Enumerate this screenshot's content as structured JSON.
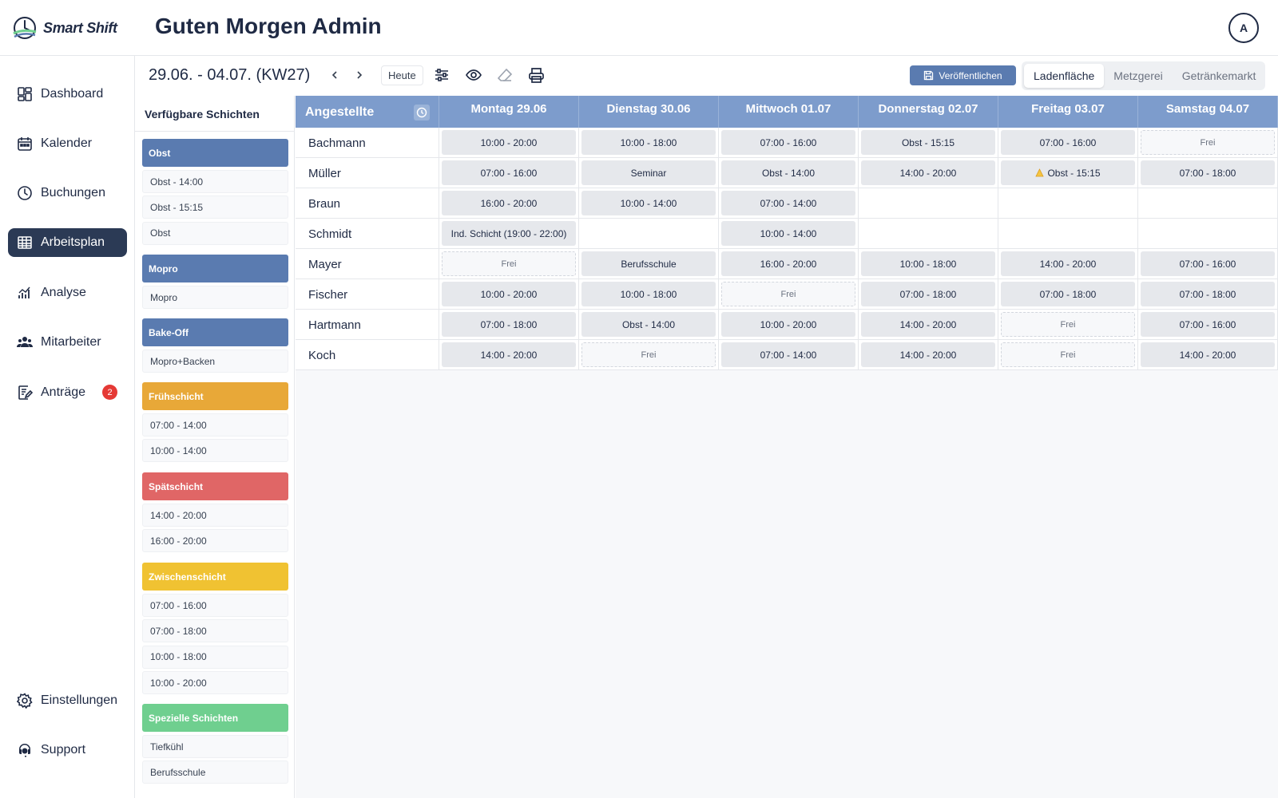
{
  "app": {
    "logo_text": "Smart Shift",
    "greeting": "Guten Morgen Admin",
    "avatar_initial": "A"
  },
  "sidebar": {
    "items": [
      {
        "label": "Dashboard",
        "icon": "dashboard-icon"
      },
      {
        "label": "Kalender",
        "icon": "calendar-icon"
      },
      {
        "label": "Buchungen",
        "icon": "clock-icon"
      },
      {
        "label": "Arbeitsplan",
        "icon": "table-icon",
        "active": true
      },
      {
        "label": "Analyse",
        "icon": "chart-icon"
      },
      {
        "label": "Mitarbeiter",
        "icon": "users-icon"
      },
      {
        "label": "Anträge",
        "icon": "edit-icon",
        "badge": "2"
      }
    ],
    "bottom": [
      {
        "label": "Einstellungen",
        "icon": "gear-icon"
      },
      {
        "label": "Support",
        "icon": "headset-icon"
      }
    ]
  },
  "toolbar": {
    "week_label": "29.06. - 04.07. (KW27)",
    "today_label": "Heute",
    "publish_label": "Veröffentlichen",
    "departments": [
      "Ladenfläche",
      "Metzgerei",
      "Getränkemarkt"
    ],
    "active_department": "Ladenfläche"
  },
  "available": {
    "title": "Verfügbare Schichten",
    "groups": [
      {
        "name": "Obst",
        "color": "#5a7bb0",
        "items": [
          "Obst - 14:00",
          "Obst - 15:15",
          "Obst"
        ]
      },
      {
        "name": "Mopro",
        "color": "#5a7bb0",
        "items": [
          "Mopro"
        ]
      },
      {
        "name": "Bake-Off",
        "color": "#5a7bb0",
        "items": [
          "Mopro+Backen"
        ]
      },
      {
        "name": "Frühschicht",
        "color": "#e8a838",
        "items": [
          "07:00 - 14:00",
          "10:00 - 14:00"
        ]
      },
      {
        "name": "Spätschicht",
        "color": "#e06666",
        "items": [
          "14:00 - 20:00",
          "16:00 - 20:00"
        ]
      },
      {
        "name": "Zwischenschicht",
        "color": "#f0c232",
        "items": [
          "07:00 - 16:00",
          "07:00 - 18:00",
          "10:00 - 18:00",
          "10:00 - 20:00"
        ]
      },
      {
        "name": "Spezielle Schichten",
        "color": "#6fcf8f",
        "items": [
          "Tiefkühl",
          "Berufsschule"
        ]
      }
    ]
  },
  "grid": {
    "employee_header": "Angestellte",
    "days": [
      "Montag 29.06",
      "Dienstag 30.06",
      "Mittwoch 01.07",
      "Donnerstag 02.07",
      "Freitag 03.07",
      "Samstag 04.07"
    ],
    "rows": [
      {
        "name": "Bachmann",
        "cells": [
          "10:00 - 20:00",
          "10:00 - 18:00",
          "07:00 - 16:00",
          "Obst - 15:15",
          "07:00 - 16:00",
          "Frei"
        ]
      },
      {
        "name": "Müller",
        "cells": [
          "07:00 - 16:00",
          "Seminar",
          "Obst - 14:00",
          "14:00 - 20:00",
          "Obst - 15:15",
          "07:00 - 18:00"
        ],
        "warning_cell": 4
      },
      {
        "name": "Braun",
        "cells": [
          "16:00 - 20:00",
          "10:00 - 14:00",
          "07:00 - 14:00",
          "",
          "",
          ""
        ]
      },
      {
        "name": "Schmidt",
        "cells": [
          "Ind. Schicht (19:00 - 22:00)",
          "",
          "10:00 - 14:00",
          "",
          "",
          ""
        ]
      },
      {
        "name": "Mayer",
        "cells": [
          "Frei",
          "Berufsschule",
          "16:00 - 20:00",
          "10:00 - 18:00",
          "14:00 - 20:00",
          "07:00 - 16:00"
        ]
      },
      {
        "name": "Fischer",
        "cells": [
          "10:00 - 20:00",
          "10:00 - 18:00",
          "Frei",
          "07:00 - 18:00",
          "07:00 - 18:00",
          "07:00 - 18:00"
        ]
      },
      {
        "name": "Hartmann",
        "cells": [
          "07:00 - 18:00",
          "Obst - 14:00",
          "10:00 - 20:00",
          "14:00 - 20:00",
          "Frei",
          "07:00 - 16:00"
        ]
      },
      {
        "name": "Koch",
        "cells": [
          "14:00 - 20:00",
          "Frei",
          "07:00 - 14:00",
          "14:00 - 20:00",
          "Frei",
          "14:00 - 20:00"
        ]
      }
    ]
  }
}
